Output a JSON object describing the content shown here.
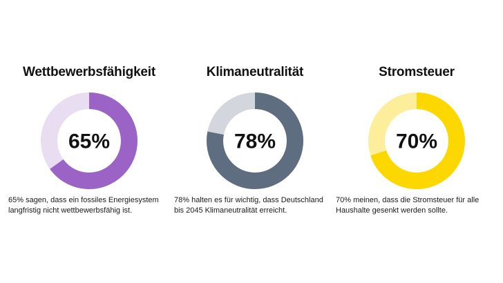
{
  "chart_data": [
    {
      "type": "pie",
      "title": "Wettbewerbsfähigkeit",
      "value_label": "65%",
      "slices": [
        65,
        35
      ],
      "colors": [
        "#9b63c6",
        "#e8ddf1"
      ],
      "caption": "65% sagen, dass ein fossiles Energiesystem langfristig nicht wettbewerbsfähig ist."
    },
    {
      "type": "pie",
      "title": "Klimaneutralität",
      "value_label": "78%",
      "slices": [
        78,
        22
      ],
      "colors": [
        "#5e6d80",
        "#d3d6dc"
      ],
      "caption": "78% halten es für wichtig, dass Deutschland bis 2045 Klimaneutralität erreicht."
    },
    {
      "type": "pie",
      "title": "Stromsteuer",
      "value_label": "70%",
      "slices": [
        70,
        30
      ],
      "colors": [
        "#fdd800",
        "#fdee9c"
      ],
      "caption": "70% meinen, dass die Stromsteuer für alle Haushalte gesenkt werden sollte."
    }
  ]
}
